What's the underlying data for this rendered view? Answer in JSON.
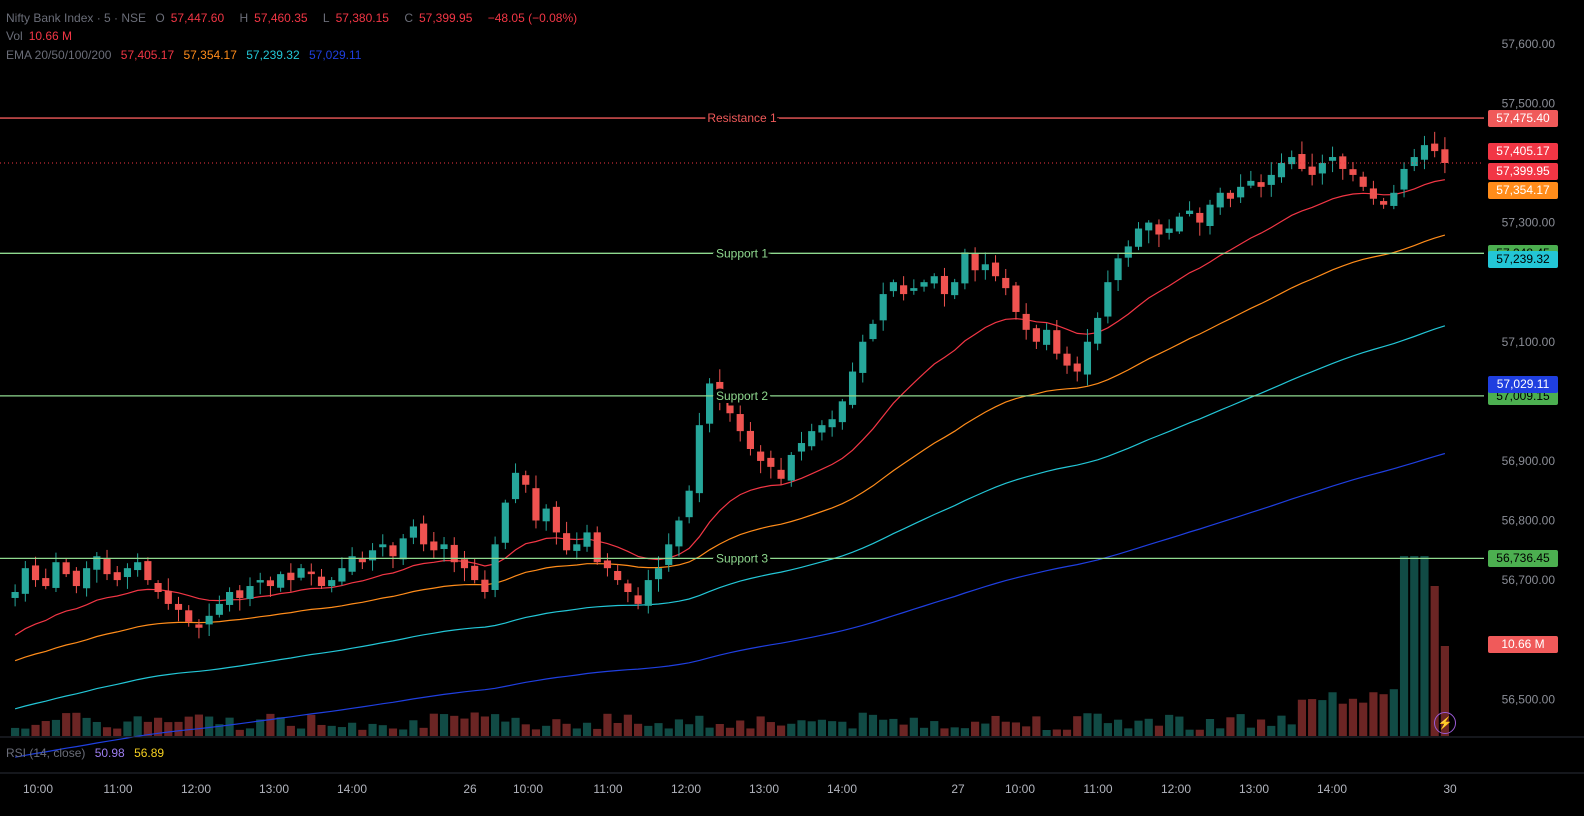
{
  "header": {
    "symbol": "Nifty Bank Index · 5 · NSE",
    "open_label": "O",
    "open": "57,447.60",
    "high_label": "H",
    "high": "57,460.35",
    "low_label": "L",
    "low": "57,380.15",
    "close_label": "C",
    "close": "57,399.95",
    "change": "−48.05 (−0.08%)",
    "vol_label": "Vol",
    "vol": "10.66 M",
    "ema_label": "EMA 20/50/100/200",
    "ema20": "57,405.17",
    "ema50": "57,354.17",
    "ema100": "57,239.32",
    "ema200": "57,029.11"
  },
  "colors": {
    "up": "#26a69a",
    "down": "#ef5350",
    "resistance": "#f05a5a",
    "support": "#8fd98f",
    "ema20": "#f23645",
    "ema50": "#ff8c1a",
    "ema100": "#23c6d6",
    "ema200": "#1f3fe0"
  },
  "levels": [
    {
      "name": "Resistance 1",
      "price": 57475.4,
      "tag": "57,475.40",
      "kind": "resistance"
    },
    {
      "name": "Support 1",
      "price": 57248.45,
      "tag": "57,248.45",
      "kind": "support"
    },
    {
      "name": "Support 2",
      "price": 57009.15,
      "tag": "57,009.15",
      "kind": "support"
    },
    {
      "name": "Support 3",
      "price": 56736.45,
      "tag": "56,736.45",
      "kind": "support"
    }
  ],
  "price_tags": [
    {
      "text": "57,405.17",
      "price": 57405.17,
      "color": "#f23645"
    },
    {
      "text": "57,399.95",
      "price": 57399.95,
      "color": "#f23645"
    },
    {
      "text": "57,354.17",
      "price": 57354.17,
      "color": "#ff8c1a"
    },
    {
      "text": "57,239.32",
      "price": 57239.32,
      "color": "#23c6d6"
    },
    {
      "text": "57,029.11",
      "price": 57029.11,
      "color": "#1f3fe0"
    }
  ],
  "volume_tag": "10.66 M",
  "y_axis_ticks": [
    "57,600.00",
    "57,500.00",
    "57,300.00",
    "57,100.00",
    "56,900.00",
    "56,800.00",
    "56,700.00",
    "56,500.00"
  ],
  "y_axis_tick_values": [
    57600,
    57500,
    57300,
    57100,
    56900,
    56800,
    56700,
    56500
  ],
  "time_axis": [
    "10:00",
    "11:00",
    "12:00",
    "13:00",
    "14:00",
    "26",
    "10:00",
    "11:00",
    "12:00",
    "13:00",
    "14:00",
    "27",
    "10:00",
    "11:00",
    "12:00",
    "13:00",
    "14:00",
    "30"
  ],
  "rsi": {
    "label": "RSI (14, close)",
    "v1": "50.98",
    "v2": "56.89"
  },
  "chart_data": {
    "type": "candlestick",
    "title": "Nifty Bank Index · 5 · NSE",
    "ylim": [
      56440,
      57640
    ],
    "closes": [
      56680,
      56720,
      56700,
      56690,
      56730,
      56710,
      56690,
      56720,
      56740,
      56710,
      56700,
      56720,
      56730,
      56700,
      56680,
      56660,
      56650,
      56630,
      56620,
      56640,
      56660,
      56680,
      56670,
      56690,
      56700,
      56690,
      56710,
      56700,
      56720,
      56710,
      56690,
      56700,
      56720,
      56740,
      56730,
      56750,
      56760,
      56740,
      56770,
      56790,
      56760,
      56750,
      56760,
      56730,
      56720,
      56700,
      56680,
      56760,
      56830,
      56880,
      56860,
      56800,
      56820,
      56780,
      56750,
      56760,
      56780,
      56730,
      56720,
      56700,
      56680,
      56660,
      56700,
      56720,
      56760,
      56800,
      56850,
      56960,
      57030,
      57000,
      56980,
      56950,
      56920,
      56900,
      56890,
      56870,
      56910,
      56930,
      56950,
      56960,
      56970,
      57000,
      57050,
      57100,
      57130,
      57180,
      57200,
      57180,
      57190,
      57200,
      57210,
      57180,
      57200,
      57250,
      57220,
      57230,
      57210,
      57190,
      57150,
      57120,
      57100,
      57120,
      57080,
      57060,
      57050,
      57100,
      57140,
      57200,
      57240,
      57260,
      57290,
      57300,
      57280,
      57290,
      57310,
      57320,
      57300,
      57330,
      57350,
      57340,
      57360,
      57370,
      57360,
      57380,
      57400,
      57410,
      57390,
      57380,
      57400,
      57410,
      57390,
      57380,
      57360,
      57340,
      57330,
      57350,
      57390,
      57410,
      57430,
      57420,
      57400
    ],
    "volume_units": "relative"
  }
}
